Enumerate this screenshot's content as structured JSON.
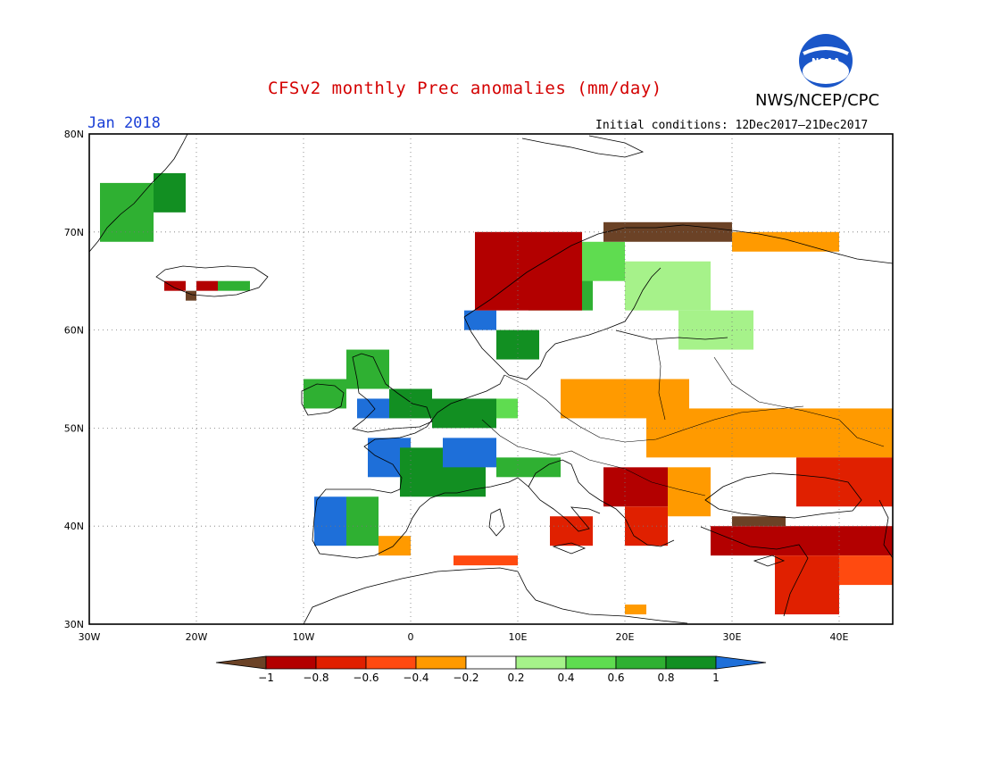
{
  "header": {
    "title": "CFSv2 monthly Prec anomalies (mm/day)",
    "month": "Jan 2018",
    "agency": "NWS/NCEP/CPC",
    "logo_text": "NOAA",
    "initial_conditions": "Initial conditions: 12Dec2017–21Dec2017"
  },
  "axes": {
    "lat_labels": [
      "80N",
      "70N",
      "60N",
      "50N",
      "40N",
      "30N"
    ],
    "lon_labels": [
      "30W",
      "20W",
      "10W",
      "0",
      "10E",
      "20E",
      "30E",
      "40E"
    ],
    "lat_range": [
      30,
      80
    ],
    "lon_range": [
      -30,
      45
    ],
    "grid": "dotted"
  },
  "colorbar": {
    "ticks": [
      "−1",
      "−0.8",
      "−0.6",
      "−0.4",
      "−0.2",
      "0.2",
      "0.4",
      "0.6",
      "0.8",
      "1"
    ],
    "colors": [
      "#6b4226",
      "#b30000",
      "#e02000",
      "#ff4a10",
      "#ff9a00",
      "#ffffff",
      "#a6f28a",
      "#5fdc50",
      "#2fb032",
      "#128f22",
      "#1e6fd9"
    ]
  },
  "anomaly_regions": [
    {
      "lon": [
        -29,
        -24
      ],
      "lat": [
        69,
        75
      ],
      "cls": 8
    },
    {
      "lon": [
        -24,
        -21
      ],
      "lat": [
        72,
        76
      ],
      "cls": 9
    },
    {
      "lon": [
        -23,
        -21
      ],
      "lat": [
        64,
        65
      ],
      "cls": 1
    },
    {
      "lon": [
        -20,
        -18
      ],
      "lat": [
        64,
        65
      ],
      "cls": 1
    },
    {
      "lon": [
        -21,
        -20
      ],
      "lat": [
        63,
        64
      ],
      "cls": 0
    },
    {
      "lon": [
        -18,
        -15
      ],
      "lat": [
        64,
        65
      ],
      "cls": 8
    },
    {
      "lon": [
        -10,
        -6
      ],
      "lat": [
        52,
        55
      ],
      "cls": 8
    },
    {
      "lon": [
        -6,
        -2
      ],
      "lat": [
        54,
        58
      ],
      "cls": 8
    },
    {
      "lon": [
        -5,
        -2
      ],
      "lat": [
        51,
        53
      ],
      "cls": 10
    },
    {
      "lon": [
        -2,
        2
      ],
      "lat": [
        51,
        54
      ],
      "cls": 9
    },
    {
      "lon": [
        2,
        8
      ],
      "lat": [
        50,
        53
      ],
      "cls": 9
    },
    {
      "lon": [
        8,
        10
      ],
      "lat": [
        51,
        53
      ],
      "cls": 7
    },
    {
      "lon": [
        -4,
        0
      ],
      "lat": [
        45,
        49
      ],
      "cls": 10
    },
    {
      "lon": [
        -1,
        7
      ],
      "lat": [
        43,
        48
      ],
      "cls": 9
    },
    {
      "lon": [
        3,
        8
      ],
      "lat": [
        46,
        49
      ],
      "cls": 10
    },
    {
      "lon": [
        8,
        14
      ],
      "lat": [
        45,
        47
      ],
      "cls": 8
    },
    {
      "lon": [
        -9,
        -6
      ],
      "lat": [
        38,
        43
      ],
      "cls": 10
    },
    {
      "lon": [
        -6,
        -3
      ],
      "lat": [
        38,
        43
      ],
      "cls": 8
    },
    {
      "lon": [
        -3,
        0
      ],
      "lat": [
        37,
        39
      ],
      "cls": 4
    },
    {
      "lon": [
        5,
        8
      ],
      "lat": [
        60,
        62
      ],
      "cls": 10
    },
    {
      "lon": [
        8,
        12
      ],
      "lat": [
        57,
        60
      ],
      "cls": 9
    },
    {
      "lon": [
        11,
        17
      ],
      "lat": [
        62,
        66
      ],
      "cls": 8
    },
    {
      "lon": [
        15,
        20
      ],
      "lat": [
        65,
        69
      ],
      "cls": 7
    },
    {
      "lon": [
        20,
        28
      ],
      "lat": [
        62,
        67
      ],
      "cls": 6
    },
    {
      "lon": [
        25,
        32
      ],
      "lat": [
        58,
        62
      ],
      "cls": 6
    },
    {
      "lon": [
        6,
        16
      ],
      "lat": [
        62,
        70
      ],
      "cls": 1
    },
    {
      "lon": [
        18,
        30
      ],
      "lat": [
        69,
        71
      ],
      "cls": 0
    },
    {
      "lon": [
        30,
        40
      ],
      "lat": [
        68,
        70
      ],
      "cls": 4
    },
    {
      "lon": [
        14,
        26
      ],
      "lat": [
        51,
        55
      ],
      "cls": 4
    },
    {
      "lon": [
        22,
        45
      ],
      "lat": [
        47,
        52
      ],
      "cls": 4
    },
    {
      "lon": [
        18,
        24
      ],
      "lat": [
        42,
        46
      ],
      "cls": 1
    },
    {
      "lon": [
        20,
        24
      ],
      "lat": [
        38,
        42
      ],
      "cls": 2
    },
    {
      "lon": [
        24,
        28
      ],
      "lat": [
        41,
        46
      ],
      "cls": 4
    },
    {
      "lon": [
        28,
        45
      ],
      "lat": [
        37,
        40
      ],
      "cls": 1
    },
    {
      "lon": [
        30,
        35
      ],
      "lat": [
        40,
        41
      ],
      "cls": 0
    },
    {
      "lon": [
        36,
        45
      ],
      "lat": [
        42,
        47
      ],
      "cls": 2
    },
    {
      "lon": [
        34,
        40
      ],
      "lat": [
        31,
        37
      ],
      "cls": 2
    },
    {
      "lon": [
        13,
        17
      ],
      "lat": [
        38,
        41
      ],
      "cls": 2
    },
    {
      "lon": [
        4,
        10
      ],
      "lat": [
        36,
        37
      ],
      "cls": 3
    },
    {
      "lon": [
        40,
        45
      ],
      "lat": [
        34,
        37
      ],
      "cls": 3
    },
    {
      "lon": [
        20,
        22
      ],
      "lat": [
        31,
        32
      ],
      "cls": 4
    }
  ]
}
